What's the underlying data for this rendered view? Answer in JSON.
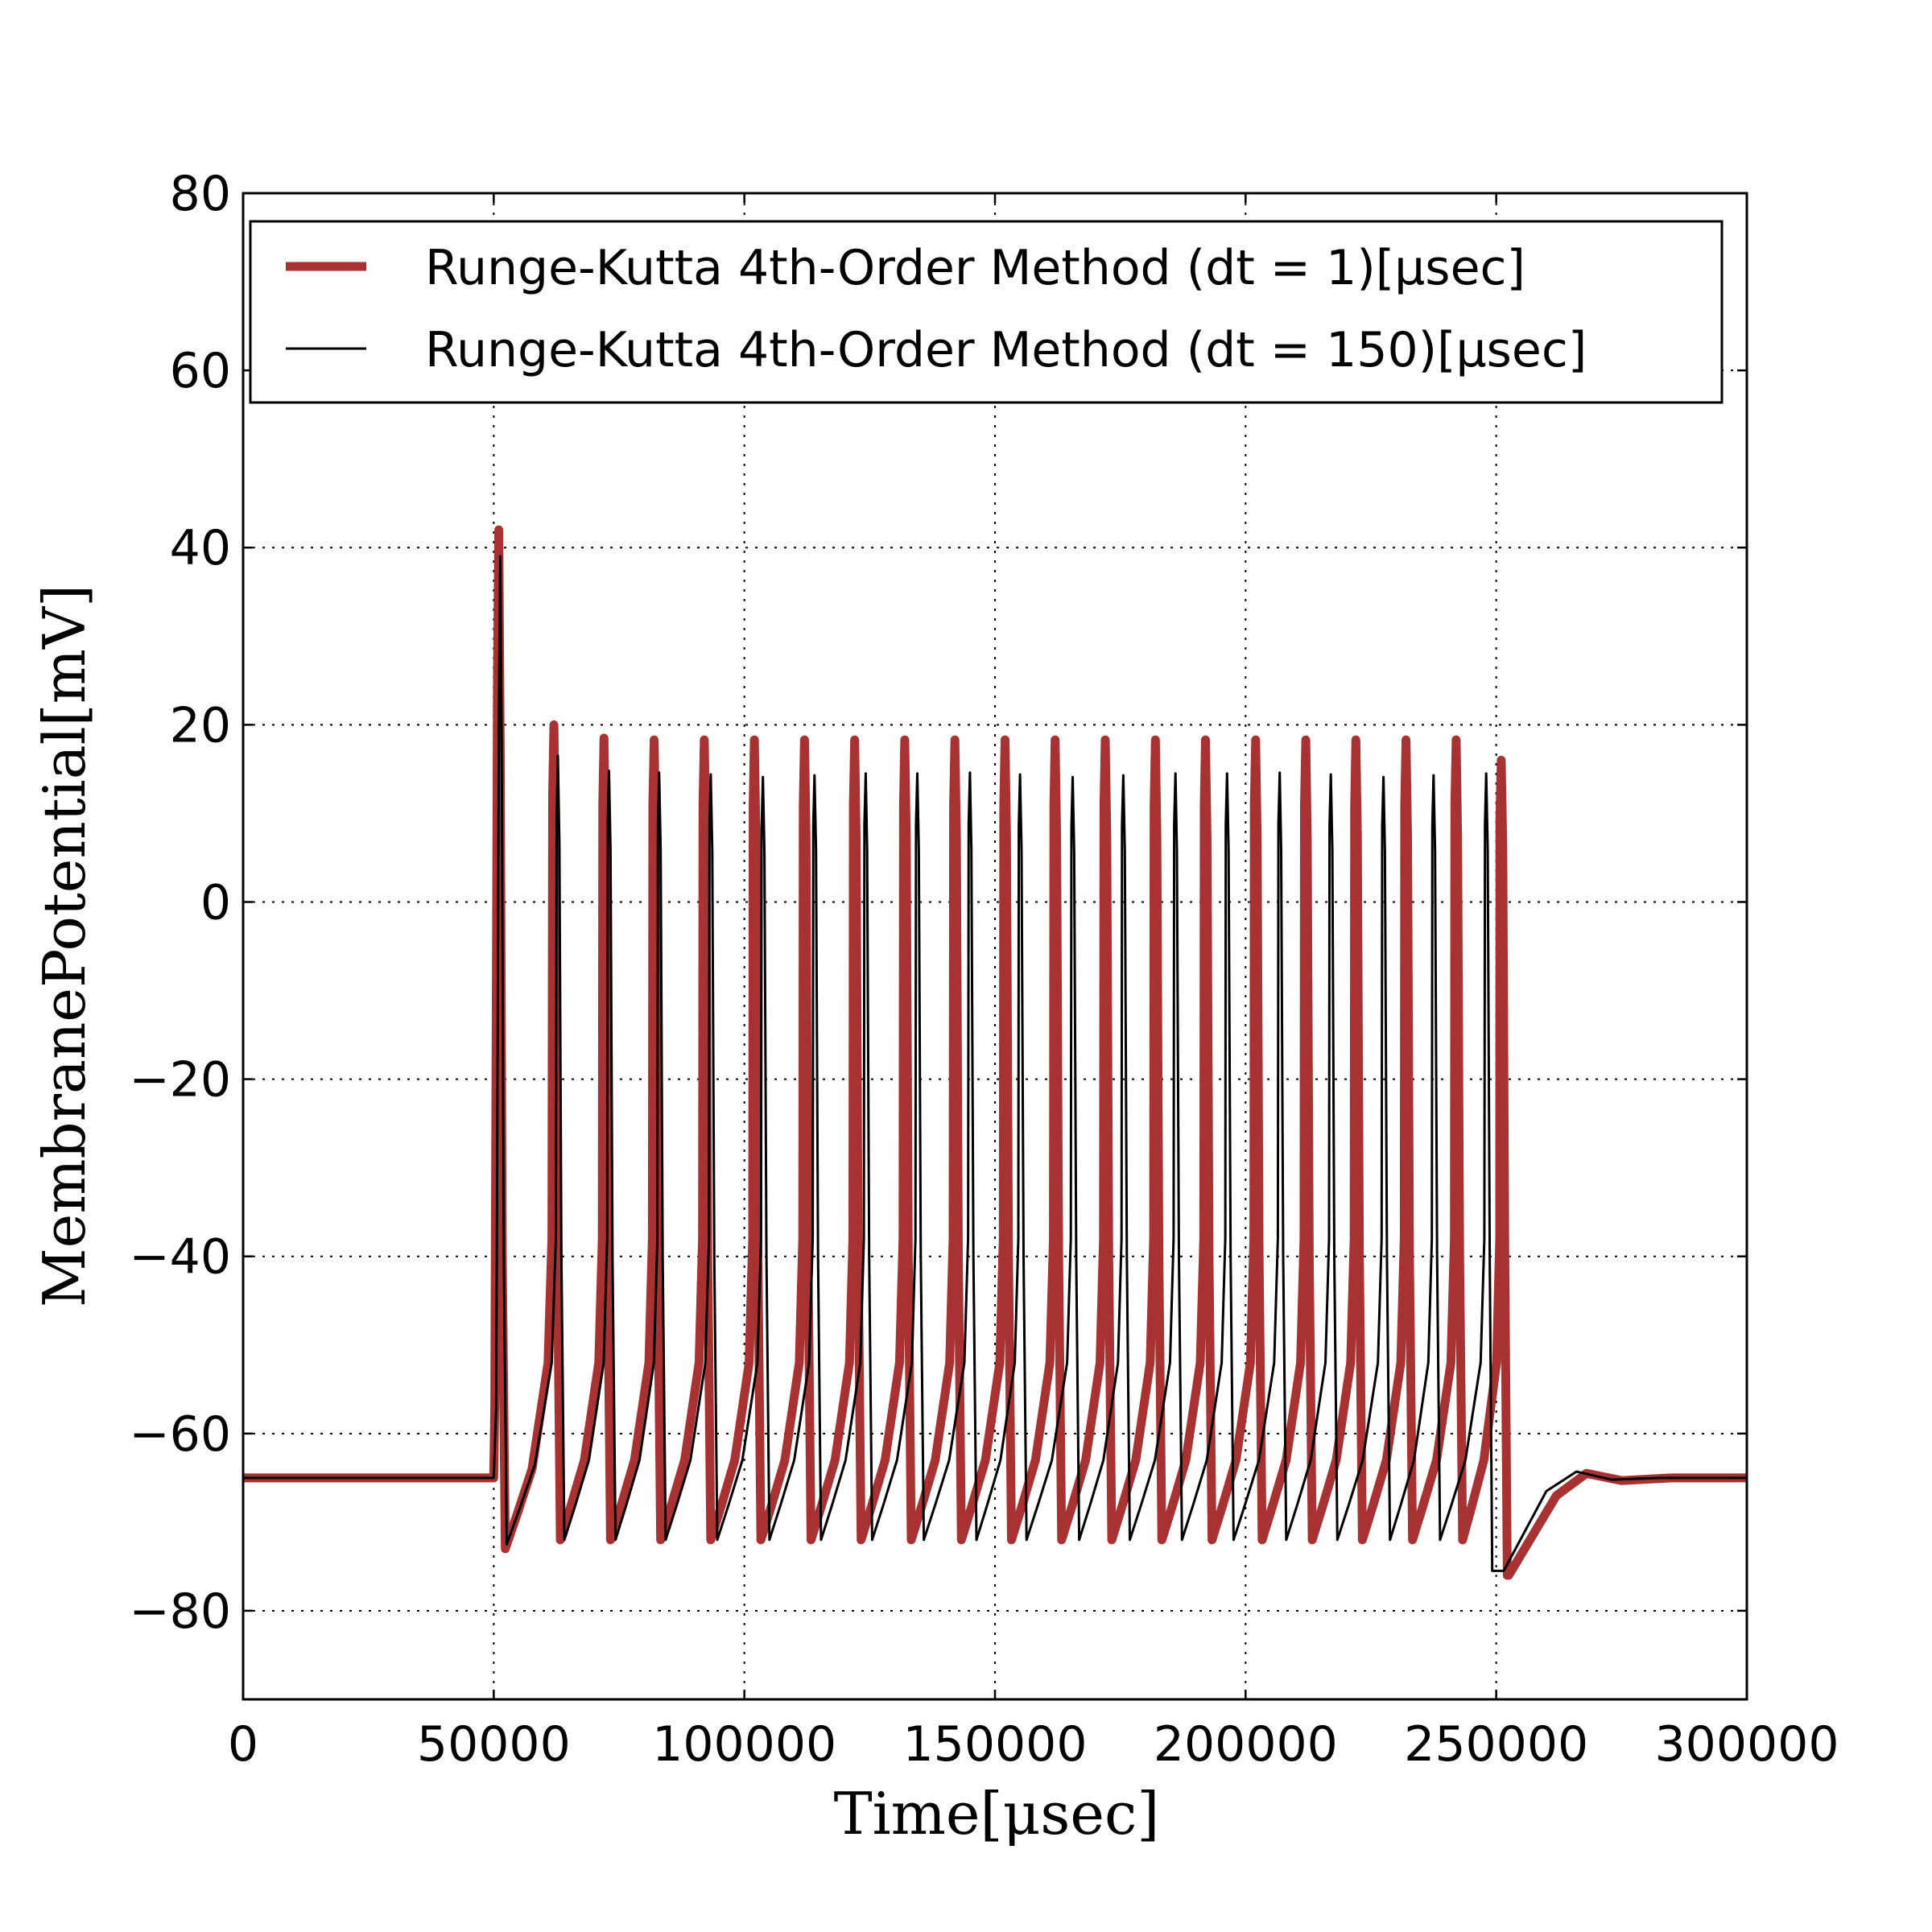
{
  "chart_data": {
    "type": "line",
    "title": "",
    "xlabel": "Time[μsec]",
    "ylabel": "MembranePotential[mV]",
    "xlim": [
      0,
      300000
    ],
    "ylim": [
      -90,
      80
    ],
    "xticks": [
      0,
      50000,
      100000,
      150000,
      200000,
      250000,
      300000
    ],
    "xtick_labels": [
      "0",
      "50000",
      "100000",
      "150000",
      "200000",
      "250000",
      "300000"
    ],
    "yticks": [
      -80,
      -60,
      -40,
      -20,
      0,
      20,
      40,
      60,
      80
    ],
    "ytick_labels": [
      "−80",
      "−60",
      "−40",
      "−20",
      "0",
      "20",
      "40",
      "60",
      "80"
    ],
    "grid": true,
    "legend_position": "top",
    "resting_potential": -65,
    "stimulus_window": [
      50000,
      250000
    ],
    "series": [
      {
        "name": "Runge-Kutta 4th-Order Method (dt = 1)[μsec]",
        "color": "#a83232",
        "spike_times": [
          51000,
          62000,
          72000,
          82000,
          92000,
          102000,
          112000,
          122000,
          132000,
          142000,
          152000,
          162000,
          172000,
          182000,
          192000,
          202000,
          212000,
          222000,
          232000,
          242000,
          251000
        ],
        "spike_peaks": [
          42,
          20,
          18.5,
          18.3,
          18.3,
          18.3,
          18.3,
          18.3,
          18.3,
          18.3,
          18.3,
          18.3,
          18.3,
          18.3,
          18.3,
          18.3,
          18.3,
          18.3,
          18.3,
          18.3,
          16
        ],
        "trough": -72,
        "first_trough": -73,
        "final_trough": -76,
        "post_stimulus": [
          [
            252500,
            -76
          ],
          [
            262000,
            -67
          ],
          [
            268000,
            -64.5
          ],
          [
            275000,
            -65.3
          ],
          [
            285000,
            -65
          ],
          [
            300000,
            -65
          ]
        ]
      },
      {
        "name": "Runge-Kutta 4th-Order Method (dt = 150)[μsec]",
        "color": "#000000",
        "spike_times": [
          51300,
          62800,
          73000,
          83000,
          93300,
          103700,
          114000,
          124200,
          134500,
          145000,
          155000,
          165500,
          175600,
          186000,
          196300,
          206800,
          217000,
          227500,
          237500,
          248000
        ],
        "spike_peaks": [
          39,
          16.5,
          14.8,
          14.6,
          14.4,
          14.1,
          14.3,
          14.5,
          14.5,
          14.6,
          14.4,
          14.1,
          14.3,
          14.5,
          14.5,
          14.6,
          14.4,
          14.1,
          14.3,
          14.5
        ],
        "trough": -72,
        "first_trough": -72.5,
        "final_trough": -75.5,
        "post_stimulus": [
          [
            251500,
            -75.5
          ],
          [
            260000,
            -66.5
          ],
          [
            266000,
            -64.3
          ],
          [
            273000,
            -65.2
          ],
          [
            283000,
            -65
          ],
          [
            300000,
            -65
          ]
        ]
      }
    ]
  }
}
